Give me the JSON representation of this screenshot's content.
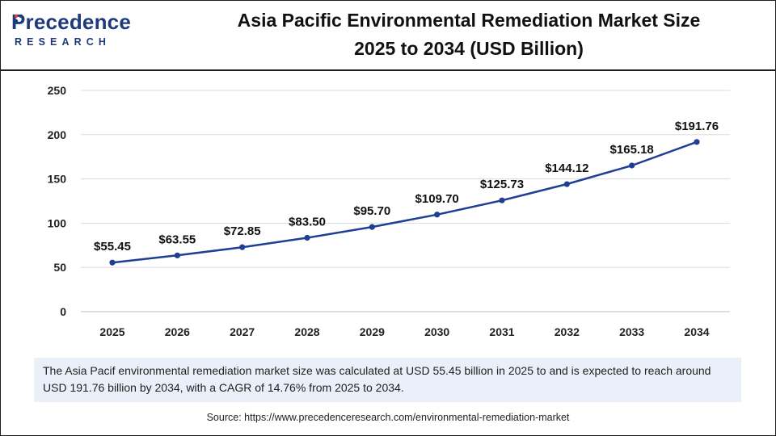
{
  "brand": {
    "name_top": "Precedence",
    "name_bottom": "RESEARCH",
    "color": "#1e3a7c",
    "accent": "#e03c31"
  },
  "header": {
    "title_line1": "Asia Pacific Environmental Remediation Market Size",
    "title_line2": "2025 to 2034 (USD Billion)"
  },
  "summary": {
    "text": "The Asia Pacif environmental remediation market size was calculated at USD 55.45 billion in 2025 to and is expected to reach around USD 191.76 billion by 2034, with a CAGR of 14.76% from 2025 to 2034."
  },
  "source": {
    "text": "Source: https://www.precedenceresearch.com/environmental-remediation-market"
  },
  "chart_data": {
    "type": "line",
    "x": [
      "2025",
      "2026",
      "2027",
      "2028",
      "2029",
      "2030",
      "2031",
      "2032",
      "2033",
      "2034"
    ],
    "series": [
      {
        "values": [
          55.45,
          63.55,
          72.85,
          83.5,
          95.7,
          109.7,
          125.73,
          144.12,
          165.18,
          191.76
        ],
        "labels": [
          "$55.45",
          "$63.55",
          "$72.85",
          "$83.50",
          "$95.70",
          "$109.70",
          "$125.73",
          "$144.12",
          "$165.18",
          "$191.76"
        ],
        "color": "#1e3f94"
      }
    ],
    "ylim": [
      0,
      250
    ],
    "yticks": [
      0,
      50,
      100,
      150,
      200,
      250
    ],
    "grid": true,
    "gridColor": "#dcdcdc",
    "title": "",
    "xlabel": "",
    "ylabel": ""
  }
}
